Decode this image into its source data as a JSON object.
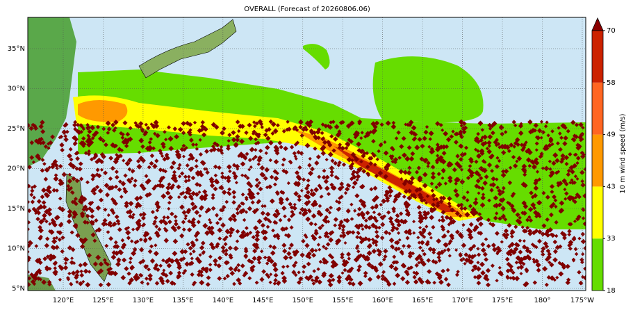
{
  "map": {
    "title": "OVERALL (Forecast of 20260806.06)",
    "lon_labels": [
      "120°E",
      "125°E",
      "130°E",
      "135°E",
      "140°E",
      "145°E",
      "150°E",
      "155°E",
      "160°E",
      "165°E",
      "170°E",
      "175°E",
      "180°",
      "175°W"
    ],
    "lat_labels": [
      "35°N",
      "30°N",
      "25°N",
      "20°N",
      "15°N",
      "10°N",
      "5°N"
    ],
    "colorbar": {
      "label": "10 m wind speed (m/s)",
      "ticks": [
        18,
        33,
        43,
        49,
        58,
        70
      ],
      "colors": [
        "#66dd00",
        "#ffff00",
        "#ff9900",
        "#ff6622",
        "#cc2200"
      ],
      "extend_color": "#8b0000"
    }
  }
}
